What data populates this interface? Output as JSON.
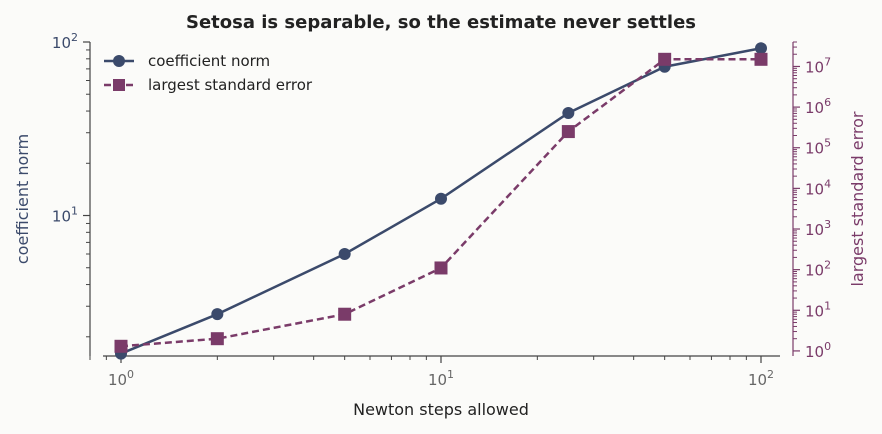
{
  "chart_data": {
    "type": "line",
    "title": "Setosa is separable, so the estimate never settles",
    "xlabel": "Newton steps allowed",
    "ylabel_left": "coefficient norm",
    "ylabel_right": "largest standard error",
    "x_scale": "log",
    "y_left_scale": "log",
    "y_right_scale": "log",
    "xlim": [
      0.8,
      130
    ],
    "ylim_left": [
      1.55,
      100
    ],
    "ylim_right": [
      0.75,
      40000000
    ],
    "x_tick_labels": [
      "10^0",
      "10^1",
      "10^2"
    ],
    "y_left_tick_labels": [
      "10^1",
      "10^2"
    ],
    "y_right_tick_labels": [
      "10^0",
      "10^1",
      "10^2",
      "10^3",
      "10^4",
      "10^5",
      "10^6",
      "10^7"
    ],
    "legend_position": "top-left",
    "grid": false,
    "x": [
      1,
      2,
      5,
      10,
      25,
      50,
      100
    ],
    "series": [
      {
        "name": "coefficient norm",
        "axis": "left",
        "style": "solid",
        "marker": "circle",
        "color": "#3b4a6b",
        "values": [
          1.6,
          2.7,
          6.0,
          12.5,
          39,
          72,
          92
        ]
      },
      {
        "name": "largest standard error",
        "axis": "right",
        "style": "dashed",
        "marker": "square",
        "color": "#7a3b69",
        "values": [
          1.3,
          2.0,
          8.0,
          110,
          250000,
          15000000,
          15000000
        ]
      }
    ]
  }
}
